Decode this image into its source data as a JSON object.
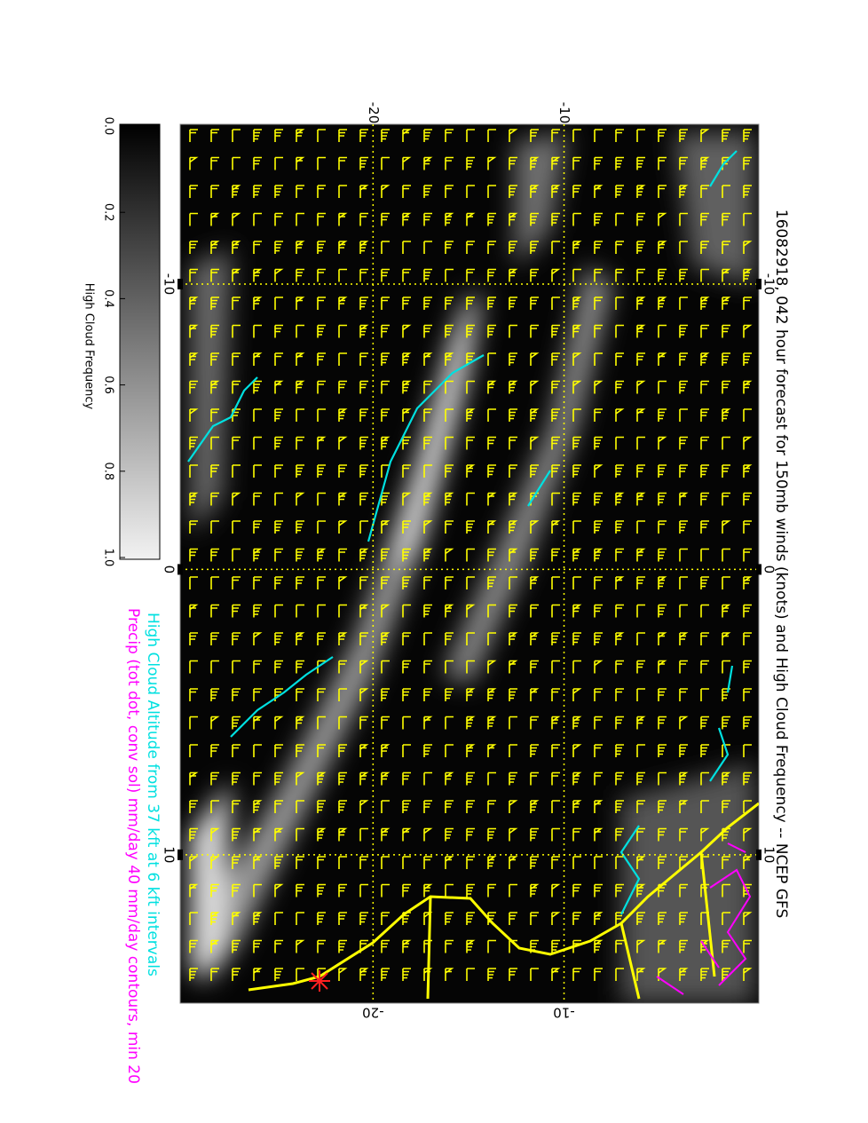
{
  "title": "16082918, 042 hour forecast for 150mb winds (knots) and High Cloud Frequency -- NCEP GFS",
  "legend": {
    "cyan": "High Cloud Altitude from 37 kft at 6 kft intervals",
    "magenta": "Precip (tot dot, conv sol) mm/day 40 mm/day contours, min 20"
  },
  "colorbar": {
    "label": "High Cloud Frequency",
    "ticks": [
      {
        "value": 0,
        "label": "0.0"
      },
      0.2,
      0.4,
      0.6,
      0.8,
      {
        "value": 1,
        "label": "1.0"
      }
    ]
  },
  "map": {
    "xlim": [
      -30.1,
      0.2
    ],
    "xticks": [
      -20,
      -10
    ],
    "ylim": [
      -15.6,
      15.2
    ],
    "yticks": [
      -10,
      0,
      10
    ]
  }
}
